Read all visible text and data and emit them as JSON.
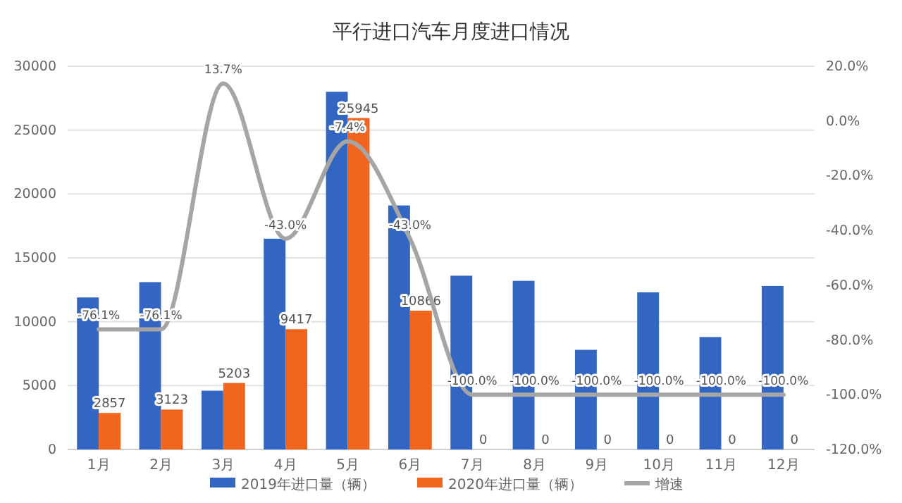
{
  "chart_data": {
    "type": "bar",
    "title": "平行进口汽车月度进口情况",
    "categories": [
      "1月",
      "2月",
      "3月",
      "4月",
      "5月",
      "6月",
      "7月",
      "8月",
      "9月",
      "10月",
      "11月",
      "12月"
    ],
    "series": [
      {
        "name": "2019年进口量（辆）",
        "color": "#3366c2",
        "values": [
          11900,
          13100,
          4600,
          16500,
          28000,
          19100,
          13600,
          13200,
          7800,
          12300,
          8800,
          12800
        ]
      },
      {
        "name": "2020年进口量（辆）",
        "color": "#f0641e",
        "values": [
          2857,
          3123,
          5203,
          9417,
          25945,
          10866,
          0,
          0,
          0,
          0,
          0,
          0
        ],
        "value_labels": [
          "2857",
          "3123",
          "5203",
          "9417",
          "25945",
          "10866",
          "0",
          "0",
          "0",
          "0",
          "0",
          "0"
        ]
      },
      {
        "name": "增速",
        "type": "line",
        "axis": "y2",
        "color": "#a5a5a5",
        "values": [
          -76.1,
          -76.1,
          13.7,
          -43.0,
          -7.4,
          -43.0,
          -100.0,
          -100.0,
          -100.0,
          -100.0,
          -100.0,
          -100.0
        ],
        "value_labels": [
          "-76.1%",
          "-76.1%",
          "13.7%",
          "-43.0%",
          "-7.4%",
          "-43.0%",
          "-100.0%",
          "-100.0%",
          "-100.0%",
          "-100.0%",
          "-100.0%",
          "-100.0%"
        ]
      }
    ],
    "ylim": [
      0,
      30000
    ],
    "yticks": [
      0,
      5000,
      10000,
      15000,
      20000,
      25000,
      30000
    ],
    "y2lim": [
      -120,
      20
    ],
    "y2ticks": [
      {
        "value": -120,
        "label": "-120.0%"
      },
      {
        "value": -100,
        "label": "-100.0%"
      },
      {
        "value": -80,
        "label": "-80.0%"
      },
      {
        "value": -60,
        "label": "-60.0%"
      },
      {
        "value": -40,
        "label": "-40.0%"
      },
      {
        "value": -20,
        "label": "-20.0%"
      },
      {
        "value": 0,
        "label": "0.0%"
      },
      {
        "value": 20,
        "label": "20.0%"
      }
    ],
    "grid": "y",
    "legend": "bottom",
    "marker": "none",
    "line_style": "solid"
  }
}
